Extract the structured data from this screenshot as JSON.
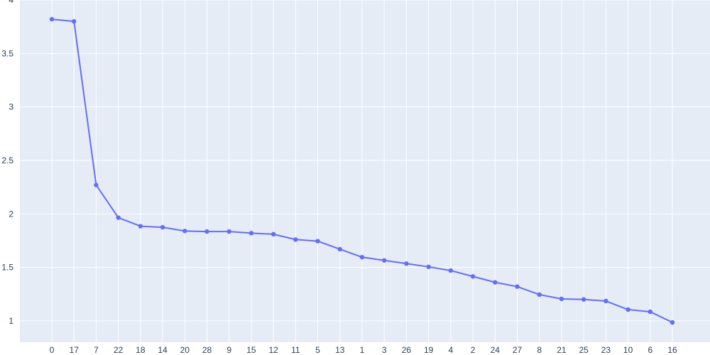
{
  "chart_data": {
    "type": "line",
    "title": "",
    "xlabel": "",
    "ylabel": "",
    "categories": [
      "0",
      "17",
      "7",
      "22",
      "18",
      "14",
      "20",
      "28",
      "9",
      "15",
      "12",
      "11",
      "5",
      "13",
      "1",
      "3",
      "26",
      "19",
      "4",
      "2",
      "24",
      "27",
      "8",
      "21",
      "25",
      "23",
      "10",
      "6",
      "16"
    ],
    "series": [
      {
        "values": [
          3.82,
          3.8,
          2.27,
          1.965,
          1.885,
          1.875,
          1.84,
          1.835,
          1.835,
          1.82,
          1.81,
          1.76,
          1.745,
          1.67,
          1.595,
          1.565,
          1.535,
          1.505,
          1.47,
          1.415,
          1.36,
          1.32,
          1.245,
          1.205,
          1.2,
          1.185,
          1.105,
          1.085,
          0.985
        ],
        "color": "#636efa"
      }
    ],
    "yticks": [
      "1",
      "1.5",
      "2",
      "2.5",
      "3",
      "3.5",
      "4"
    ],
    "ylim": [
      0.8,
      4.0
    ],
    "grid": true,
    "legend": "none",
    "colors": {
      "plot_bg": "#e5ecf6",
      "grid": "#ffffff",
      "tick_text": "#2a3f5f",
      "line": "#636efa"
    }
  }
}
